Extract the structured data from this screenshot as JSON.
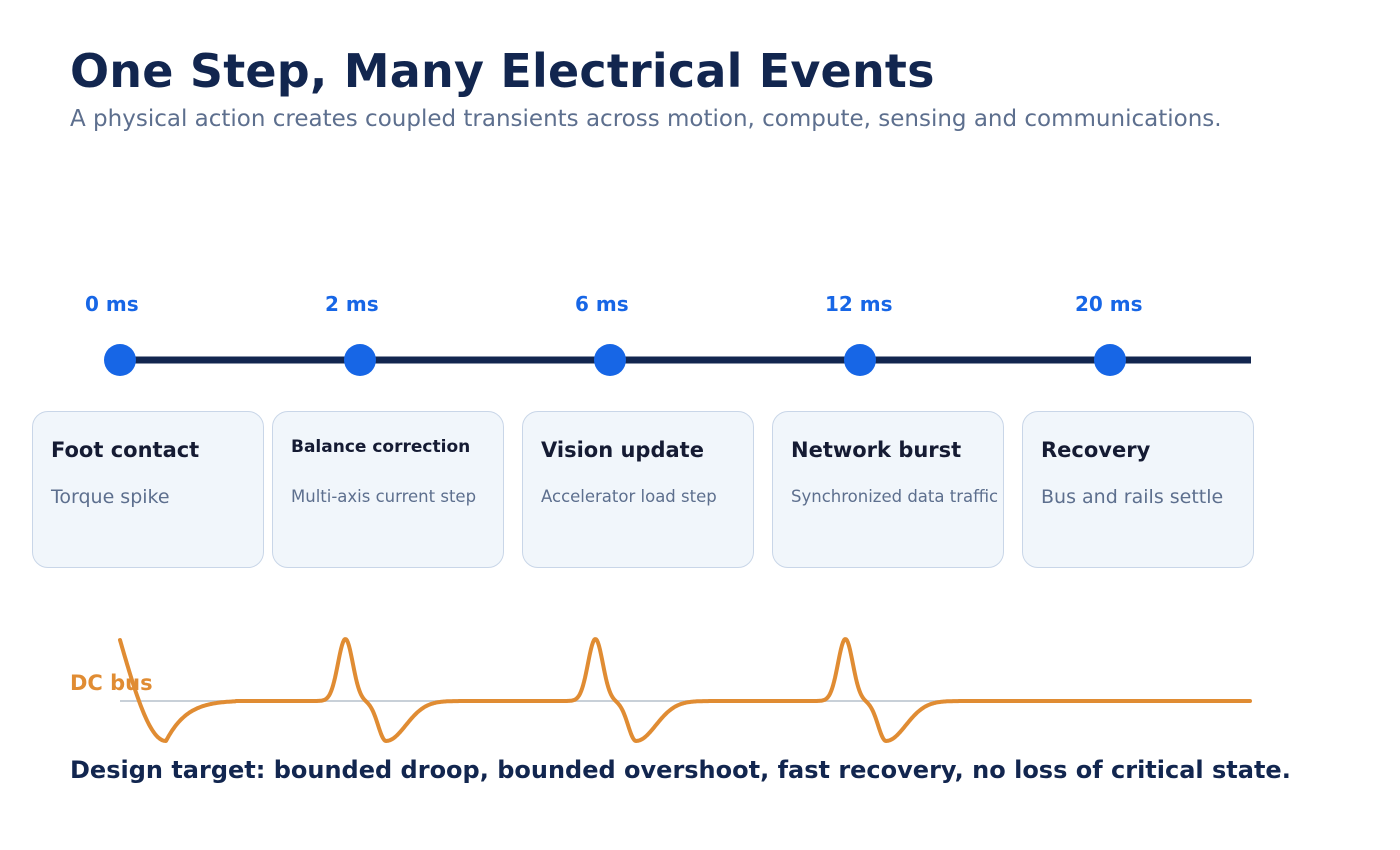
{
  "title": "One Step, Many Electrical Events",
  "subtitle": "A physical action creates coupled transients across motion, compute, sensing and communications.",
  "events": [
    {
      "time": "0 ms",
      "title": "Foot contact",
      "desc": "Torque spike"
    },
    {
      "time": "2 ms",
      "title": "Balance correction",
      "desc": "Multi-axis current step"
    },
    {
      "time": "6 ms",
      "title": "Vision update",
      "desc": "Accelerator load step"
    },
    {
      "time": "12 ms",
      "title": "Network burst",
      "desc": "Synchronized data traffic"
    },
    {
      "time": "20 ms",
      "title": "Recovery",
      "desc": "Bus and rails settle"
    }
  ],
  "waveform": {
    "label": "DC bus"
  },
  "footer": "Design target: bounded droop, bounded overshoot, fast recovery, no loss of critical state.",
  "colors": {
    "title": "#12264f",
    "subtitle": "#5d6f8e",
    "accent": "#1766e6",
    "axis": "#12264f",
    "card_bg": "#f1f6fb",
    "card_border": "#c9d6e8",
    "waveform": "#e08c33",
    "baseline": "#c8d0d8"
  }
}
